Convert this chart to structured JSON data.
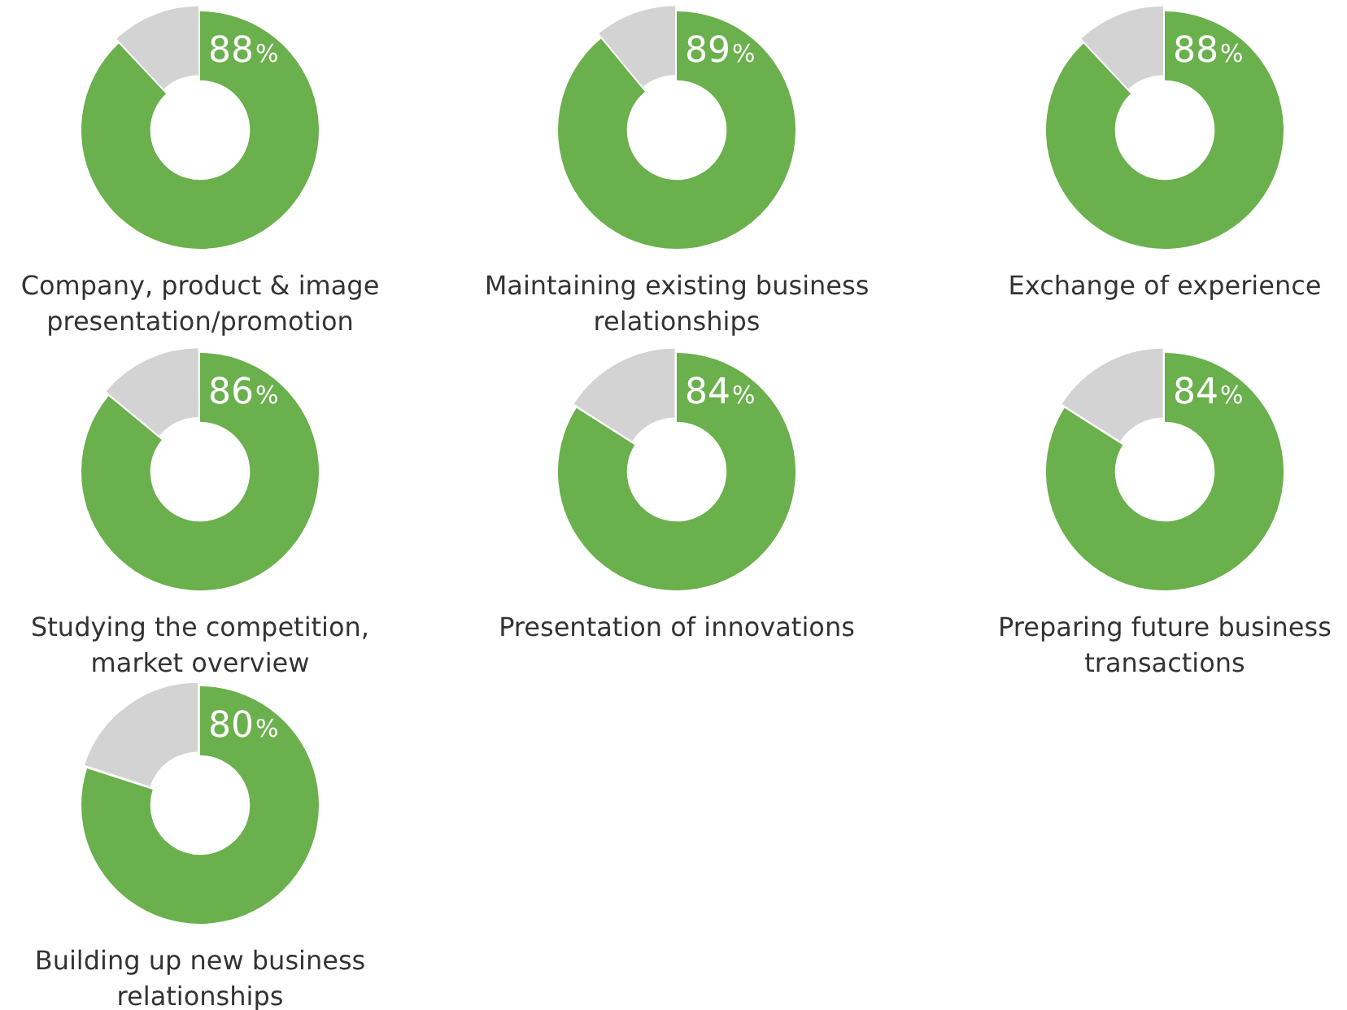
{
  "chart_data": [
    {
      "type": "donut",
      "title": "Company, product & image presentation/promotion",
      "categories": [
        null,
        null
      ],
      "values": [
        88,
        12
      ],
      "colors": [
        "#6ab04c",
        "#d3d3d3"
      ],
      "value_labels": [
        "88%",
        null
      ],
      "legend": false
    },
    {
      "type": "donut",
      "title": "Maintaining existing business relationships",
      "categories": [
        null,
        null
      ],
      "values": [
        89,
        11
      ],
      "colors": [
        "#6ab04c",
        "#d3d3d3"
      ],
      "value_labels": [
        "89%",
        null
      ],
      "legend": false
    },
    {
      "type": "donut",
      "title": "Exchange of experience",
      "categories": [
        null,
        null
      ],
      "values": [
        88,
        12
      ],
      "colors": [
        "#6ab04c",
        "#d3d3d3"
      ],
      "value_labels": [
        "88%",
        null
      ],
      "legend": false
    },
    {
      "type": "donut",
      "title": "Studying the competition, market overview",
      "categories": [
        null,
        null
      ],
      "values": [
        86,
        14
      ],
      "colors": [
        "#6ab04c",
        "#d3d3d3"
      ],
      "value_labels": [
        "86%",
        null
      ],
      "legend": false
    },
    {
      "type": "donut",
      "title": "Presentation of innovations",
      "categories": [
        null,
        null
      ],
      "values": [
        84,
        16
      ],
      "colors": [
        "#6ab04c",
        "#d3d3d3"
      ],
      "value_labels": [
        "84%",
        null
      ],
      "legend": false
    },
    {
      "type": "donut",
      "title": "Preparing future business transactions",
      "categories": [
        null,
        null
      ],
      "values": [
        84,
        16
      ],
      "colors": [
        "#6ab04c",
        "#d3d3d3"
      ],
      "value_labels": [
        "84%",
        null
      ],
      "legend": false
    },
    {
      "type": "donut",
      "title": "Building up new business relationships",
      "categories": [
        null,
        null
      ],
      "values": [
        80,
        20
      ],
      "colors": [
        "#6ab04c",
        "#d3d3d3"
      ],
      "value_labels": [
        "80%",
        null
      ],
      "legend": false
    }
  ]
}
